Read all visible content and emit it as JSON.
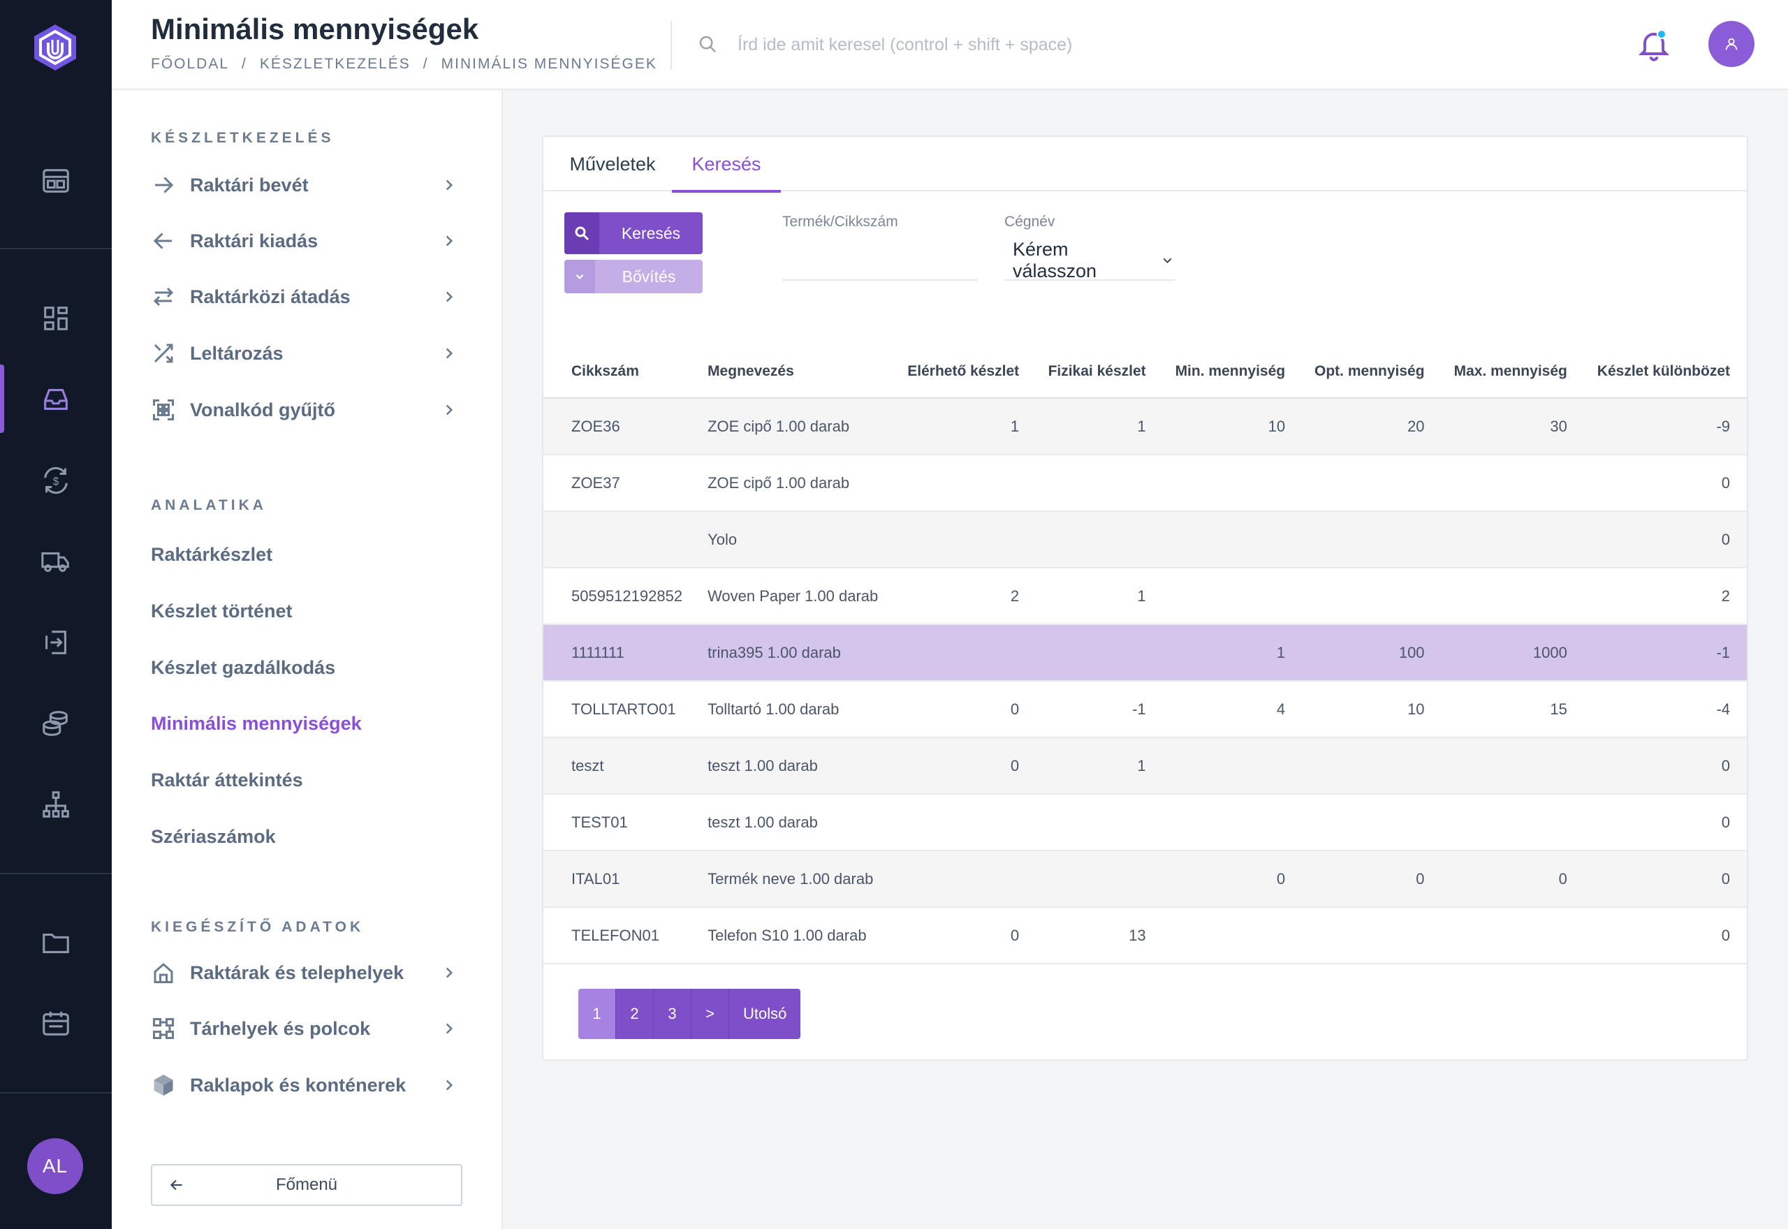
{
  "header": {
    "title": "Minimális mennyiségek",
    "breadcrumb": [
      "FŐOLDAL",
      "KÉSZLETKEZELÉS",
      "MINIMÁLIS MENNYISÉGEK"
    ],
    "breadcrumb_sep": "/",
    "search_placeholder": "Írd ide amit keresel (control + shift + space)"
  },
  "rail": {
    "user_initials": "AL",
    "icons": [
      "dashboard-icon",
      "apps-grid-icon",
      "inbox-icon",
      "currency-exchange-icon",
      "truck-icon",
      "import-icon",
      "coins-icon",
      "sitemap-icon",
      "folder-icon",
      "calendar-icon"
    ]
  },
  "sidebar": {
    "section1": "KÉSZLETKEZELÉS",
    "items1": [
      {
        "label": "Raktári bevét",
        "icon": "arrow-right-icon"
      },
      {
        "label": "Raktári kiadás",
        "icon": "arrow-left-icon"
      },
      {
        "label": "Raktárközi átadás",
        "icon": "transfer-icon"
      },
      {
        "label": "Leltározás",
        "icon": "shuffle-icon"
      },
      {
        "label": "Vonalkód gyűjtő",
        "icon": "qr-code-icon"
      }
    ],
    "section2": "ANALATIKA",
    "links": [
      "Raktárkészlet",
      "Készlet történet",
      "Készlet gazdálkodás",
      "Minimális mennyiségek",
      "Raktár áttekintés",
      "Szériaszámok"
    ],
    "active_link": "Minimális mennyiségek",
    "section3": "KIEGÉSZÍTŐ ADATOK",
    "items3": [
      {
        "label": "Raktárak és telephelyek",
        "icon": "home-icon"
      },
      {
        "label": "Tárhelyek és polcok",
        "icon": "shelves-icon"
      },
      {
        "label": "Raklapok és konténerek",
        "icon": "box-icon"
      }
    ],
    "back_label": "Főmenü"
  },
  "tabs": [
    "Műveletek",
    "Keresés"
  ],
  "active_tab": "Keresés",
  "filters": {
    "search_button": "Keresés",
    "expand_button": "Bővítés",
    "product_label": "Termék/Cikkszám",
    "product_value": "",
    "company_label": "Cégnév",
    "company_value": "Kérem válasszon"
  },
  "table": {
    "columns": [
      "Cikkszám",
      "Megnevezés",
      "Elérhető készlet",
      "Fizikai készlet",
      "Min. mennyiség",
      "Opt. mennyiség",
      "Max. mennyiség",
      "Készlet különbözet"
    ],
    "rows": [
      [
        "ZOE36",
        "ZOE cipő 1.00 darab",
        "1",
        "1",
        "10",
        "20",
        "30",
        "-9"
      ],
      [
        "ZOE37",
        "ZOE cipő 1.00 darab",
        "",
        "",
        "",
        "",
        "",
        "0"
      ],
      [
        "",
        "Yolo",
        "",
        "",
        "",
        "",
        "",
        "0"
      ],
      [
        "5059512192852",
        "Woven Paper 1.00 darab",
        "2",
        "1",
        "",
        "",
        "",
        "2"
      ],
      [
        "1111111",
        "trina395 1.00 darab",
        "",
        "",
        "1",
        "100",
        "1000",
        "-1"
      ],
      [
        "TOLLTARTO01",
        "Tolltartó 1.00 darab",
        "0",
        "-1",
        "4",
        "10",
        "15",
        "-4"
      ],
      [
        "teszt",
        "teszt 1.00 darab",
        "0",
        "1",
        "",
        "",
        "",
        "0"
      ],
      [
        "TEST01",
        "teszt 1.00 darab",
        "",
        "",
        "",
        "",
        "",
        "0"
      ],
      [
        "ITAL01",
        "Termék neve 1.00 darab",
        "",
        "",
        "0",
        "0",
        "0",
        "0"
      ],
      [
        "TELEFON01",
        "Telefon S10 1.00 darab",
        "0",
        "13",
        "",
        "",
        "",
        "0"
      ]
    ],
    "selected_row": 4
  },
  "pagination": {
    "pages": [
      "1",
      "2",
      "3"
    ],
    "current": "1",
    "next": ">",
    "last": "Utolsó"
  },
  "colors": {
    "accent": "#7e4fc8",
    "rail_bg": "#111827",
    "selected_row": "#d3c5eb",
    "notification_dot": "#22b8f0"
  }
}
